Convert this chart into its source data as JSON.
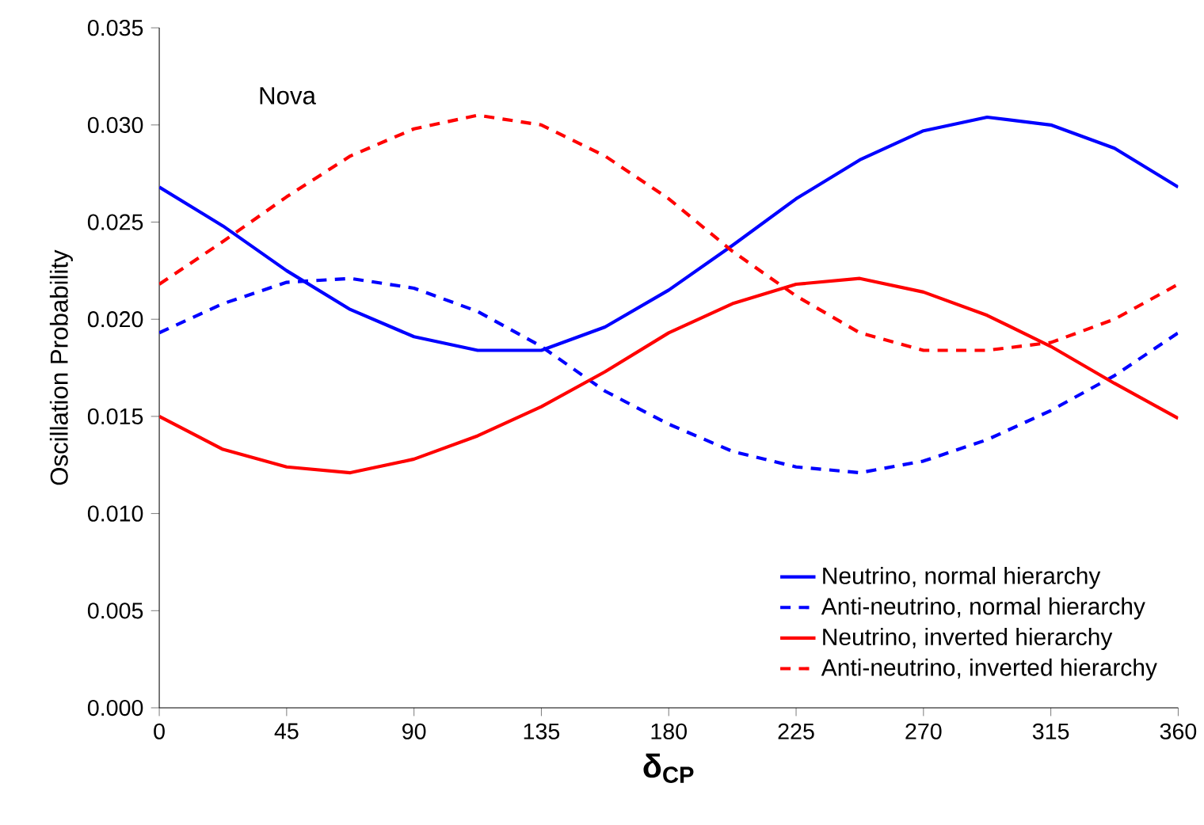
{
  "chart_data": {
    "type": "line",
    "xlabel": "δ$_{CP}$",
    "ylabel": "Oscillation Probability",
    "annotations": [
      "Nova"
    ],
    "x": [
      0,
      22.5,
      45,
      67.5,
      90,
      112.5,
      135,
      157.5,
      180,
      202.5,
      225,
      247.5,
      270,
      292.5,
      315,
      337.5,
      360
    ],
    "series": [
      {
        "name": "Neutrino, normal hierarchy",
        "color": "#0000ff",
        "line_style": "solid",
        "values": [
          0.0268,
          0.0248,
          0.0225,
          0.0205,
          0.0191,
          0.0184,
          0.0184,
          0.0196,
          0.0215,
          0.0238,
          0.0262,
          0.0282,
          0.0297,
          0.0304,
          0.03,
          0.0288,
          0.0268
        ]
      },
      {
        "name": "Anti-neutrino, normal hierarchy",
        "color": "#0000ff",
        "line_style": "dashed",
        "values": [
          0.0193,
          0.0208,
          0.0219,
          0.0221,
          0.0216,
          0.0204,
          0.0186,
          0.0163,
          0.0146,
          0.0132,
          0.0124,
          0.0121,
          0.0127,
          0.0138,
          0.0153,
          0.0171,
          0.0193
        ]
      },
      {
        "name": "Neutrino, inverted hierarchy",
        "color": "#ff0000",
        "line_style": "solid",
        "values": [
          0.015,
          0.0133,
          0.0124,
          0.0121,
          0.0128,
          0.014,
          0.0155,
          0.0173,
          0.0193,
          0.0208,
          0.0218,
          0.0221,
          0.0214,
          0.0202,
          0.0186,
          0.0167,
          0.0149
        ]
      },
      {
        "name": "Anti-neutrino, inverted hierarchy",
        "color": "#ff0000",
        "line_style": "dashed",
        "values": [
          0.0218,
          0.024,
          0.0263,
          0.0284,
          0.0298,
          0.0305,
          0.03,
          0.0284,
          0.0262,
          0.0235,
          0.0212,
          0.0193,
          0.0184,
          0.0184,
          0.0188,
          0.02,
          0.0218
        ]
      }
    ],
    "xlim": [
      0,
      360
    ],
    "xticks": [
      0,
      45,
      90,
      135,
      180,
      225,
      270,
      315,
      360
    ],
    "ylim": [
      0,
      0.035
    ],
    "yticks": [
      {
        "value": 0,
        "label": "0.000"
      },
      {
        "value": 0.005,
        "label": "0.005"
      },
      {
        "value": 0.01,
        "label": "0.010"
      },
      {
        "value": 0.015,
        "label": "0.015"
      },
      {
        "value": 0.02,
        "label": "0.020"
      },
      {
        "value": 0.025,
        "label": "0.025"
      },
      {
        "value": 0.03,
        "label": "0.030"
      },
      {
        "value": 0.035,
        "label": "0.035"
      }
    ],
    "grid": false,
    "legend": "bottom right",
    "marker": "none"
  }
}
